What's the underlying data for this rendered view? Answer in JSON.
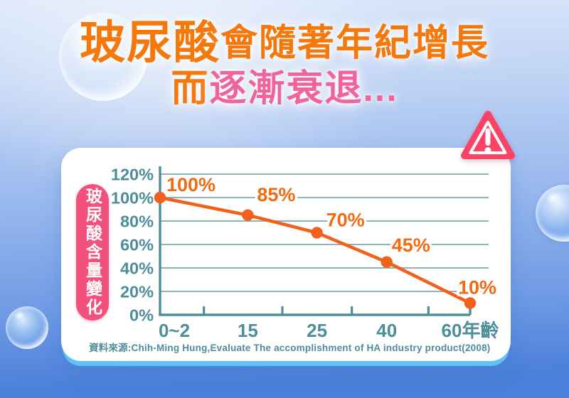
{
  "title": {
    "line1_emphasis": "玻尿酸",
    "line1_rest": "會隨著年紀增長",
    "line2_prefix": "而",
    "line2_emphasis": "逐漸衰退..."
  },
  "axis_badge_label": "玻尿酸含量變化",
  "source_citation": "資料來源:Chih-Ming Hung,Evaluate The accomplishment of HA industry product(2008)",
  "alert_icon": "exclamation-warning-triangle",
  "colors": {
    "title_orange": "#f5780d",
    "title_pink": "#f0649b",
    "badge_pink": "#f2517d",
    "alert_red": "#fb4365",
    "line_orange": "#f2611b",
    "point_label_orange": "#f26a12",
    "axis_teal": "#4e8d9a",
    "grid_teal": "#7fa9b2",
    "card_white": "#ffffff",
    "underglow_cyan": "#5fc3f5",
    "bg_top_blue": "#dbe7fa",
    "bg_bottom_blue": "#4a80d9"
  },
  "chart_data": {
    "type": "line",
    "title": "玻尿酸會隨著年紀增長而逐漸衰退",
    "categories": [
      "0~2",
      "15",
      "25",
      "40",
      "60"
    ],
    "x_axis_suffix": "年齡",
    "x_values": [
      1,
      15,
      25,
      40,
      60
    ],
    "values": [
      100,
      85,
      70,
      45,
      10
    ],
    "point_labels": [
      "100%",
      "85%",
      "70%",
      "45%",
      "10%"
    ],
    "y_ticks": [
      "120%",
      "100%",
      "80%",
      "60%",
      "40%",
      "20%",
      "0%"
    ],
    "y_tick_values": [
      120,
      100,
      80,
      60,
      40,
      20,
      0
    ],
    "ylim": [
      0,
      120
    ],
    "ylabel": "玻尿酸含量變化",
    "xlabel": "年齡",
    "grid": true,
    "legend_position": "none"
  }
}
